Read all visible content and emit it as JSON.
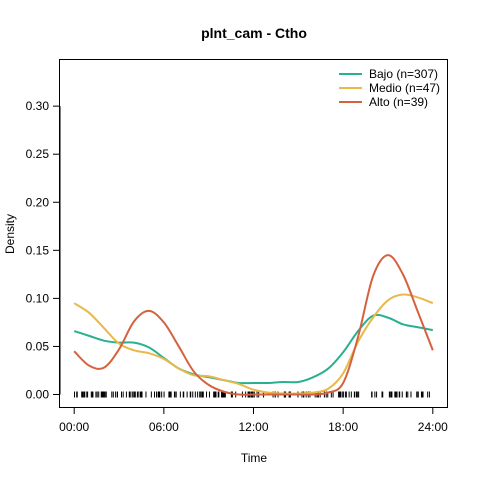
{
  "chart_data": {
    "type": "line",
    "title": "plnt_cam - Ctho",
    "xlabel": "Time",
    "ylabel": "Density",
    "xlim": [
      -0.95,
      24.95
    ],
    "ylim": [
      -0.013,
      0.348
    ],
    "x_ticks": [
      0,
      6,
      12,
      18,
      24
    ],
    "x_tick_labels": [
      "00:00",
      "06:00",
      "12:00",
      "18:00",
      "24:00"
    ],
    "y_ticks": [
      0.0,
      0.05,
      0.1,
      0.15,
      0.2,
      0.25,
      0.3
    ],
    "y_tick_labels": [
      "0.00",
      "0.05",
      "0.10",
      "0.15",
      "0.20",
      "0.25",
      "0.30"
    ],
    "legend_position": "top-right",
    "x": [
      0,
      1,
      2,
      3,
      4,
      5,
      6,
      7,
      8,
      9,
      10,
      11,
      12,
      13,
      14,
      15,
      16,
      17,
      18,
      19,
      20,
      21,
      22,
      23,
      24
    ],
    "series": [
      {
        "name": "Bajo (n=307)",
        "color": "#2bb08f",
        "values": [
          0.066,
          0.061,
          0.056,
          0.054,
          0.054,
          0.049,
          0.038,
          0.027,
          0.021,
          0.018,
          0.015,
          0.012,
          0.012,
          0.012,
          0.013,
          0.013,
          0.018,
          0.027,
          0.044,
          0.066,
          0.082,
          0.08,
          0.073,
          0.07,
          0.067
        ]
      },
      {
        "name": "Medio (n=47)",
        "color": "#e8b84a",
        "values": [
          0.095,
          0.085,
          0.069,
          0.053,
          0.046,
          0.043,
          0.037,
          0.027,
          0.02,
          0.019,
          0.015,
          0.011,
          0.005,
          0.002,
          0.001,
          0.001,
          0.002,
          0.006,
          0.022,
          0.055,
          0.08,
          0.098,
          0.104,
          0.101,
          0.095
        ]
      },
      {
        "name": "Alto (n=39)",
        "color": "#d5623f",
        "values": [
          0.045,
          0.03,
          0.028,
          0.047,
          0.076,
          0.087,
          0.075,
          0.05,
          0.024,
          0.01,
          0.003,
          0.0,
          0.0,
          0.0,
          0.0,
          0.0,
          0.0,
          0.002,
          0.012,
          0.06,
          0.123,
          0.145,
          0.125,
          0.086,
          0.046
        ]
      }
    ],
    "rug_color": "#000000"
  }
}
